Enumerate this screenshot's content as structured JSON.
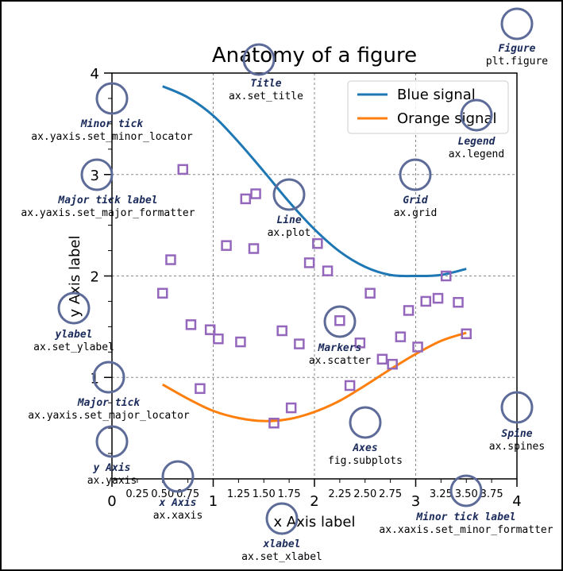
{
  "chart_data": {
    "type": "line",
    "title": "Anatomy of a figure",
    "xlabel": "x Axis label",
    "ylabel": "y Axis label",
    "xlim": [
      0,
      4
    ],
    "ylim": [
      0,
      4
    ],
    "grid": true,
    "grid_style": "dashed",
    "legend_placement": "top-right",
    "major_x_ticks": [
      0,
      1,
      2,
      3,
      4
    ],
    "major_y_ticks": [
      1,
      2,
      3,
      4
    ],
    "major_x_tick_labels": [
      "0",
      "1",
      "2",
      "3",
      "4"
    ],
    "major_y_tick_labels": [
      "1",
      "2",
      "3",
      "4"
    ],
    "minor_x_ticks": [
      0.25,
      0.5,
      0.75,
      1.25,
      1.5,
      1.75,
      2.25,
      2.5,
      2.75,
      3.25,
      3.5,
      3.75
    ],
    "minor_x_tick_labels": [
      "0.25",
      "0.50",
      "0.75",
      "1.25",
      "1.50",
      "1.75",
      "2.25",
      "2.50",
      "2.75",
      "3.25",
      "3.50",
      "3.75"
    ],
    "minor_y_ticks": [
      0.25,
      0.5,
      0.75,
      1.25,
      1.5,
      1.75,
      2.25,
      2.5,
      2.75,
      3.25,
      3.5,
      3.75
    ],
    "series": [
      {
        "name": "Blue signal",
        "kind": "line",
        "color": "#1f77b4",
        "x": [
          0.5,
          0.75,
          1.0,
          1.25,
          1.5,
          1.75,
          2.0,
          2.25,
          2.5,
          2.75,
          3.0,
          3.25,
          3.5
        ],
        "y": [
          3.87,
          3.76,
          3.58,
          3.32,
          3.03,
          2.73,
          2.46,
          2.24,
          2.09,
          2.01,
          2.0,
          2.01,
          2.07
        ]
      },
      {
        "name": "Orange signal",
        "kind": "line",
        "color": "#ff7f0e",
        "x": [
          0.5,
          0.75,
          1.0,
          1.25,
          1.5,
          1.75,
          2.0,
          2.25,
          2.5,
          2.75,
          3.0,
          3.25,
          3.5
        ],
        "y": [
          0.93,
          0.79,
          0.67,
          0.6,
          0.57,
          0.59,
          0.66,
          0.77,
          0.92,
          1.08,
          1.23,
          1.36,
          1.44
        ]
      },
      {
        "name": "",
        "kind": "scatter",
        "marker": "square-open",
        "color": "#9467bd",
        "x": [
          0.7,
          0.5,
          0.58,
          0.78,
          0.87,
          0.97,
          1.05,
          1.13,
          1.27,
          1.32,
          1.4,
          1.42,
          1.6,
          1.68,
          1.77,
          1.85,
          1.95,
          2.03,
          2.13,
          2.25,
          2.35,
          2.45,
          2.55,
          2.67,
          2.77,
          2.85,
          2.93,
          3.02,
          3.1,
          3.22,
          3.3,
          3.42,
          3.5
        ],
        "y": [
          3.05,
          1.83,
          2.16,
          1.52,
          0.89,
          1.47,
          1.38,
          2.3,
          1.35,
          2.76,
          2.27,
          2.81,
          0.55,
          1.46,
          0.7,
          1.33,
          2.13,
          2.32,
          2.05,
          1.56,
          0.92,
          1.34,
          1.83,
          1.18,
          1.13,
          1.4,
          1.66,
          1.3,
          1.75,
          1.78,
          2.0,
          1.74,
          1.43
        ]
      }
    ]
  },
  "annotations": [
    {
      "id": "figure",
      "title": "Figure",
      "code": "plt.figure"
    },
    {
      "id": "title",
      "title": "Title",
      "code": "ax.set_title"
    },
    {
      "id": "minor-tick",
      "title": "Minor tick",
      "code": "ax.yaxis.set_minor_locator"
    },
    {
      "id": "legend",
      "title": "Legend",
      "code": "ax.legend"
    },
    {
      "id": "major-tick-label",
      "title": "Major tick label",
      "code": "ax.yaxis.set_major_formatter"
    },
    {
      "id": "grid",
      "title": "Grid",
      "code": "ax.grid"
    },
    {
      "id": "line",
      "title": "Line",
      "code": "ax.plot"
    },
    {
      "id": "ylabel",
      "title": "ylabel",
      "code": "ax.set_ylabel"
    },
    {
      "id": "markers",
      "title": "Markers",
      "code": "ax.scatter"
    },
    {
      "id": "major-tick",
      "title": "Major tick",
      "code": "ax.yaxis.set_major_locator"
    },
    {
      "id": "spine",
      "title": "Spine",
      "code": "ax.spines"
    },
    {
      "id": "axes",
      "title": "Axes",
      "code": "fig.subplots"
    },
    {
      "id": "y-axis",
      "title": "y Axis",
      "code": "ax.yaxis"
    },
    {
      "id": "x-axis",
      "title": "x Axis",
      "code": "ax.xaxis"
    },
    {
      "id": "minor-tick-label",
      "title": "Minor tick label",
      "code": "ax.xaxis.set_minor_formatter"
    },
    {
      "id": "xlabel",
      "title": "xlabel",
      "code": "ax.set_xlabel"
    }
  ],
  "colors": {
    "annotation_circle": "#5d6b99",
    "annotation_title": "#1a2a5a",
    "figure_border": "#000000"
  }
}
